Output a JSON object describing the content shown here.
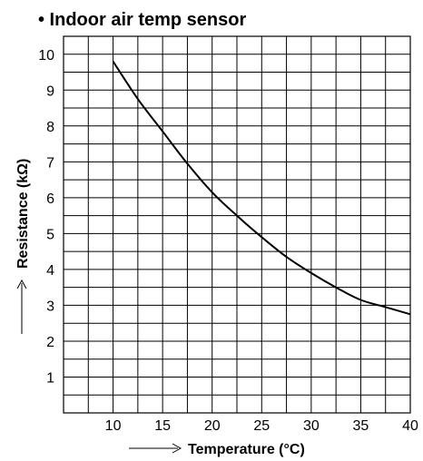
{
  "chart_data": {
    "type": "line",
    "title": "• Indoor air temp sensor",
    "xlabel": "Temperature (°C)",
    "ylabel": "Resistance (kΩ)",
    "xlim": [
      5,
      40
    ],
    "ylim": [
      0,
      10.5
    ],
    "x_ticks": [
      "10",
      "15",
      "20",
      "25",
      "30",
      "35",
      "40"
    ],
    "y_ticks": [
      "1",
      "2",
      "3",
      "4",
      "5",
      "6",
      "7",
      "8",
      "9",
      "10"
    ],
    "grid": true,
    "series": [
      {
        "x": [
          10,
          12.5,
          15,
          17.5,
          20,
          22.5,
          25,
          27.5,
          30,
          32.5,
          35,
          37.5,
          40
        ],
        "values": [
          9.8,
          8.75,
          7.85,
          6.95,
          6.15,
          5.5,
          4.9,
          4.35,
          3.9,
          3.5,
          3.15,
          2.95,
          2.75
        ]
      }
    ]
  }
}
